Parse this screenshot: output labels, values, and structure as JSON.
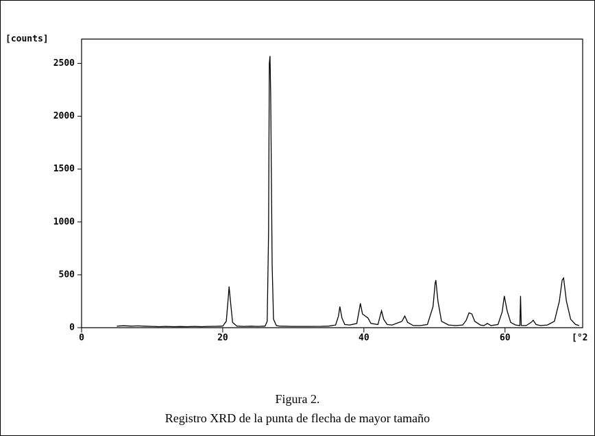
{
  "chart_data": {
    "type": "line",
    "y_label": "[counts]",
    "x_label": "[°2",
    "caption": [
      "Figura 2.",
      "Registro XRD de la punta de flecha de mayor tamaño"
    ],
    "color": "#000000",
    "x": [
      5,
      6,
      7,
      8,
      9,
      10,
      11,
      12,
      13,
      14,
      15,
      16,
      17,
      18,
      19,
      20,
      20.5,
      20.8,
      20.9,
      21.1,
      21.4,
      22,
      23,
      24,
      25,
      26,
      26.3,
      26.5,
      26.6,
      26.7,
      26.8,
      27,
      27.2,
      27.6,
      28,
      30,
      32,
      34,
      35,
      36,
      36.4,
      36.6,
      36.9,
      37.3,
      38,
      39,
      39.3,
      39.5,
      39.8,
      40.2,
      40.6,
      41,
      42,
      42.3,
      42.5,
      42.8,
      43.3,
      44,
      45.4,
      45.8,
      46.2,
      47,
      48,
      49,
      49.8,
      50.1,
      50.2,
      50.5,
      51,
      52,
      53,
      54,
      54.5,
      54.9,
      55.3,
      55.7,
      56.5,
      57,
      57.5,
      58,
      59,
      59.6,
      59.9,
      60.3,
      60.8,
      61.5,
      62.1,
      62.2,
      62.3,
      63,
      63.7,
      64,
      64.4,
      65,
      66,
      67,
      67.7,
      68.1,
      68.3,
      68.7,
      69.3,
      70,
      70.5
    ],
    "values": [
      15,
      18,
      15,
      17,
      14,
      12,
      10,
      12,
      10,
      11,
      10,
      12,
      10,
      12,
      13,
      15,
      60,
      300,
      390,
      250,
      50,
      15,
      12,
      14,
      12,
      15,
      60,
      900,
      2500,
      2570,
      2200,
      600,
      80,
      20,
      15,
      12,
      12,
      13,
      15,
      25,
      110,
      200,
      90,
      30,
      25,
      40,
      150,
      230,
      130,
      110,
      90,
      40,
      30,
      110,
      160,
      80,
      30,
      25,
      60,
      110,
      50,
      20,
      20,
      30,
      200,
      420,
      450,
      250,
      60,
      25,
      20,
      25,
      70,
      140,
      130,
      60,
      25,
      20,
      40,
      20,
      30,
      150,
      300,
      160,
      50,
      25,
      20,
      300,
      20,
      20,
      50,
      70,
      30,
      20,
      25,
      60,
      250,
      450,
      470,
      250,
      80,
      30,
      20
    ],
    "xlim": [
      0,
      71
    ],
    "ylim": [
      0,
      2730
    ],
    "xticks": [
      0,
      20,
      40,
      60
    ],
    "yticks": [
      0,
      500,
      1000,
      1500,
      2000,
      2500
    ]
  }
}
